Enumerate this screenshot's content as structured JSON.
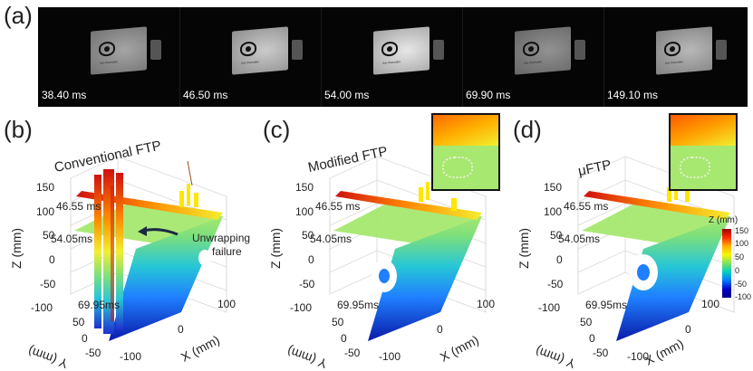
{
  "panel_a": {
    "label": "(a)",
    "frames": [
      {
        "time": "38.40 ms",
        "brightness": 0.55
      },
      {
        "time": "46.50 ms",
        "brightness": 0.75
      },
      {
        "time": "54.00 ms",
        "brightness": 0.9
      },
      {
        "time": "69.90 ms",
        "brightness": 0.45
      },
      {
        "time": "149.10 ms",
        "brightness": 0.65
      }
    ]
  },
  "panel_b": {
    "label": "(b)",
    "title": "Conventional FTP",
    "annotation_line1": "Unwrapping",
    "annotation_line2": "failure"
  },
  "panel_c": {
    "label": "(c)",
    "title": "Modified FTP"
  },
  "panel_d": {
    "label": "(d)",
    "title": "μFTP"
  },
  "surface_times": [
    "46.55 ms",
    "54.05ms",
    "69.95ms"
  ],
  "axes": {
    "z_label": "Z (mm)",
    "x_label": "X (mm)",
    "y_label": "Y (mm)",
    "z_ticks": [
      "150",
      "100",
      "50",
      "0",
      "-50",
      "-100"
    ],
    "x_ticks": [
      "-100",
      "0",
      "100"
    ],
    "y_ticks": [
      "50",
      "0",
      "-50"
    ]
  },
  "colorbar": {
    "title": "Z (mm)",
    "ticks": [
      "150",
      "100",
      "50",
      "0",
      "-50",
      "-100"
    ]
  },
  "colors": {
    "red": "#d01010",
    "orange": "#ff8c00",
    "yellow": "#f2ef30",
    "green": "#8ee07a",
    "cyan": "#27c7d6",
    "blue": "#1f5fff",
    "navy": "#0a1aa8"
  }
}
